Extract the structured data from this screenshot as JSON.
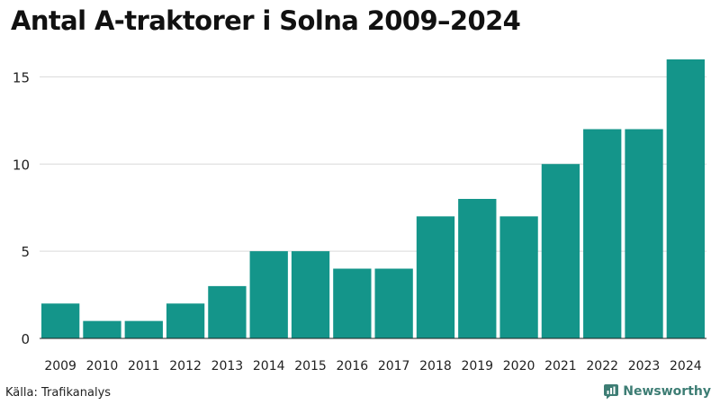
{
  "header": {
    "title": "Antal A-traktorer i Solna 2009–2024"
  },
  "footer": {
    "source": "Källa: Trafikanalys",
    "brand": "Newsworthy"
  },
  "colors": {
    "bar": "#14958a",
    "grid": "#d9d9d9",
    "axis": "#222222",
    "brand": "#3d7d74"
  },
  "chart_data": {
    "type": "bar",
    "title": "Antal A-traktorer i Solna 2009–2024",
    "xlabel": "",
    "ylabel": "",
    "categories": [
      "2009",
      "2010",
      "2011",
      "2012",
      "2013",
      "2014",
      "2015",
      "2016",
      "2017",
      "2018",
      "2019",
      "2020",
      "2021",
      "2022",
      "2023",
      "2024"
    ],
    "values": [
      2,
      1,
      1,
      2,
      3,
      5,
      5,
      4,
      4,
      7,
      8,
      7,
      10,
      12,
      12,
      16
    ],
    "yticks": [
      0,
      5,
      10,
      15
    ],
    "ylim": [
      0,
      16
    ],
    "grid": true,
    "legend": "none"
  }
}
